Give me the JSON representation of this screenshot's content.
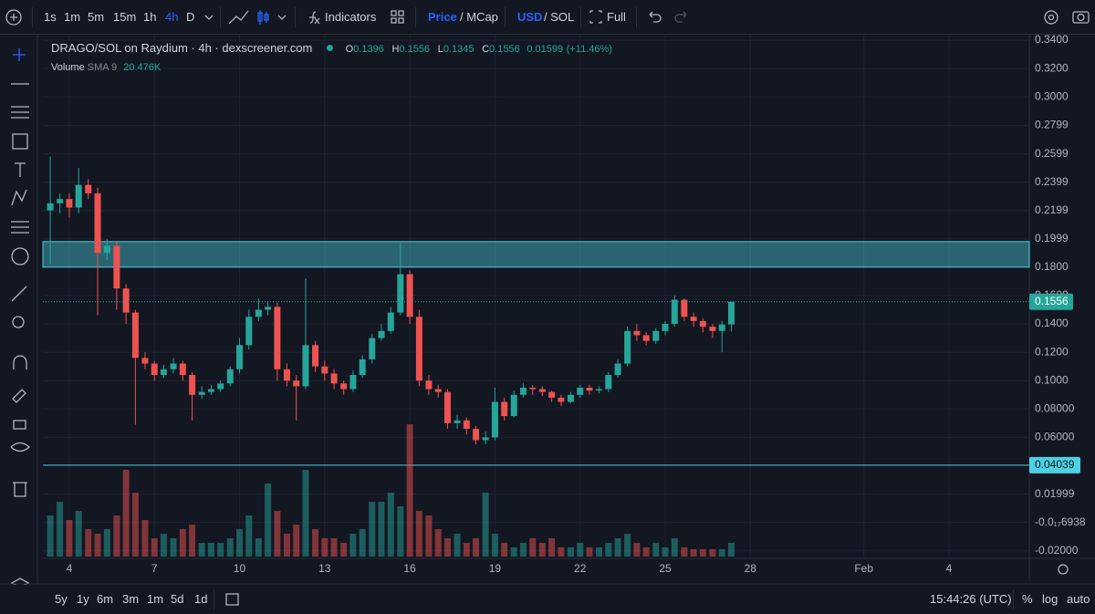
{
  "toolbar": {
    "intervals": [
      "1s",
      "1m",
      "5m",
      "15m",
      "1h",
      "4h",
      "D"
    ],
    "indicators": "Indicators",
    "price": "Price",
    "mcap": "/ MCap",
    "usd": "USD",
    "sol": "/ SOL",
    "full": "Full"
  },
  "legend": {
    "title": "DRAGO/SOL on Raydium · 4h · dexscreener.com",
    "o_label": "O",
    "o": 0.1396,
    "h_label": "H",
    "h": 0.1556,
    "l_label": "L",
    "l": 0.1345,
    "c_label": "C",
    "c": 0.1556,
    "change": 0.01599,
    "change_pct": "(+11.46%)",
    "volume": "Volume",
    "sma": "SMA 9",
    "sma_value": "20.476K"
  },
  "chart_data": {
    "type": "candlestick",
    "x": [
      3.33,
      3.67,
      4,
      4.33,
      4.67,
      5,
      5.33,
      5.67,
      6,
      6.33,
      6.67,
      7,
      7.33,
      7.67,
      8,
      8.33,
      8.67,
      9,
      9.33,
      9.67,
      10,
      10.33,
      10.67,
      11,
      11.33,
      11.67,
      12,
      12.33,
      12.67,
      13,
      13.33,
      13.67,
      14,
      14.33,
      14.67,
      15,
      15.33,
      15.67,
      16,
      16.33,
      16.67,
      17,
      17.33,
      17.67,
      18,
      18.33,
      18.67,
      19,
      19.33,
      19.67,
      20,
      20.33,
      20.67,
      21,
      21.33,
      21.67,
      22,
      22.33,
      22.67,
      23,
      23.33,
      23.67,
      24,
      24.33,
      24.67,
      25,
      25.33,
      25.67,
      26,
      26.33,
      26.67,
      27,
      27.33
    ],
    "open": [
      0.22,
      0.225,
      0.228,
      0.222,
      0.238,
      0.232,
      0.19,
      0.195,
      0.165,
      0.148,
      0.116,
      0.112,
      0.104,
      0.108,
      0.112,
      0.104,
      0.09,
      0.092,
      0.094,
      0.098,
      0.108,
      0.125,
      0.145,
      0.15,
      0.152,
      0.108,
      0.1,
      0.096,
      0.125,
      0.11,
      0.105,
      0.098,
      0.094,
      0.104,
      0.115,
      0.13,
      0.135,
      0.148,
      0.175,
      0.145,
      0.1,
      0.094,
      0.092,
      0.07,
      0.072,
      0.066,
      0.058,
      0.06,
      0.085,
      0.075,
      0.09,
      0.095,
      0.094,
      0.092,
      0.088,
      0.085,
      0.09,
      0.095,
      0.093,
      0.094,
      0.104,
      0.112,
      0.135,
      0.132,
      0.128,
      0.135,
      0.14,
      0.157,
      0.145,
      0.142,
      0.138,
      0.135,
      0.1396
    ],
    "high": [
      0.258,
      0.232,
      0.232,
      0.25,
      0.242,
      0.236,
      0.2,
      0.198,
      0.168,
      0.15,
      0.12,
      0.114,
      0.111,
      0.116,
      0.114,
      0.106,
      0.096,
      0.097,
      0.1,
      0.11,
      0.13,
      0.15,
      0.158,
      0.156,
      0.155,
      0.112,
      0.104,
      0.172,
      0.128,
      0.114,
      0.108,
      0.1,
      0.107,
      0.118,
      0.133,
      0.14,
      0.152,
      0.197,
      0.178,
      0.15,
      0.104,
      0.097,
      0.094,
      0.076,
      0.074,
      0.068,
      0.064,
      0.095,
      0.088,
      0.093,
      0.098,
      0.097,
      0.096,
      0.093,
      0.09,
      0.092,
      0.097,
      0.097,
      0.096,
      0.106,
      0.115,
      0.138,
      0.14,
      0.134,
      0.137,
      0.142,
      0.16,
      0.158,
      0.148,
      0.144,
      0.14,
      0.142,
      0.1556
    ],
    "low": [
      0.182,
      0.218,
      0.215,
      0.218,
      0.228,
      0.146,
      0.185,
      0.15,
      0.14,
      0.069,
      0.108,
      0.1,
      0.102,
      0.105,
      0.1,
      0.072,
      0.087,
      0.09,
      0.092,
      0.096,
      0.105,
      0.122,
      0.142,
      0.146,
      0.1,
      0.096,
      0.072,
      0.094,
      0.106,
      0.1,
      0.094,
      0.09,
      0.092,
      0.102,
      0.112,
      0.128,
      0.133,
      0.146,
      0.14,
      0.096,
      0.09,
      0.088,
      0.066,
      0.066,
      0.062,
      0.055,
      0.055,
      0.058,
      0.072,
      0.074,
      0.088,
      0.09,
      0.089,
      0.085,
      0.082,
      0.084,
      0.088,
      0.09,
      0.091,
      0.092,
      0.102,
      0.11,
      0.128,
      0.125,
      0.126,
      0.132,
      0.138,
      0.142,
      0.138,
      0.134,
      0.13,
      0.12,
      0.1345
    ],
    "close": [
      0.225,
      0.228,
      0.222,
      0.238,
      0.232,
      0.19,
      0.195,
      0.165,
      0.148,
      0.116,
      0.112,
      0.104,
      0.108,
      0.112,
      0.104,
      0.09,
      0.092,
      0.094,
      0.098,
      0.108,
      0.125,
      0.145,
      0.15,
      0.152,
      0.108,
      0.1,
      0.096,
      0.125,
      0.11,
      0.105,
      0.098,
      0.094,
      0.104,
      0.115,
      0.13,
      0.135,
      0.148,
      0.175,
      0.145,
      0.1,
      0.094,
      0.092,
      0.07,
      0.072,
      0.066,
      0.058,
      0.06,
      0.085,
      0.075,
      0.09,
      0.095,
      0.094,
      0.092,
      0.088,
      0.085,
      0.09,
      0.095,
      0.093,
      0.094,
      0.104,
      0.112,
      0.135,
      0.132,
      0.128,
      0.135,
      0.14,
      0.157,
      0.145,
      0.142,
      0.138,
      0.135,
      0.1396,
      0.1556
    ],
    "volume": [
      45000,
      60000,
      40000,
      50000,
      30000,
      25000,
      30000,
      45000,
      95000,
      70000,
      40000,
      20000,
      25000,
      20000,
      30000,
      35000,
      15000,
      15000,
      15000,
      20000,
      30000,
      45000,
      20000,
      80000,
      50000,
      25000,
      35000,
      95000,
      30000,
      20000,
      20000,
      15000,
      25000,
      30000,
      60000,
      60000,
      70000,
      55000,
      145000,
      50000,
      45000,
      30000,
      20000,
      25000,
      15000,
      20000,
      70000,
      25000,
      15000,
      10000,
      15000,
      20000,
      15000,
      20000,
      10000,
      10000,
      15000,
      10000,
      10000,
      15000,
      20000,
      25000,
      15000,
      10000,
      15000,
      10000,
      20000,
      10000,
      8000,
      8000,
      8000,
      8000,
      15000
    ],
    "up_color": "#26a69a",
    "down_color": "#ef5350",
    "xlim": [
      3.07,
      37.83
    ],
    "xticks": [
      4,
      7,
      10,
      13,
      16,
      19,
      22,
      25,
      28,
      {
        "value": 32,
        "label": "Feb"
      },
      {
        "value": 35,
        "label": "4"
      }
    ],
    "ylim": [
      -0.0253,
      0.3439
    ],
    "yticks": [
      {
        "value": 0.34,
        "label": "0.3400"
      },
      {
        "value": 0.32,
        "label": "0.3200"
      },
      {
        "value": 0.3,
        "label": "0.3000"
      },
      0.2799,
      0.2599,
      0.2399,
      0.2199,
      0.1999,
      {
        "value": 0.18,
        "label": "0.1800"
      },
      {
        "value": 0.16,
        "label": "0.1600"
      },
      {
        "value": 0.14,
        "label": "0.1400"
      },
      {
        "value": 0.12,
        "label": "0.1200"
      },
      {
        "value": 0.1,
        "label": "0.1000"
      },
      {
        "value": 0.08,
        "label": "0.08000"
      },
      {
        "value": 0.06,
        "label": "0.06000"
      },
      0.01999,
      {
        "value": -1.76938e-18,
        "label": "-0.0₁₇6938"
      },
      {
        "value": -0.02,
        "label": "-0.02000"
      }
    ],
    "volume_lim": [
      0,
      150000
    ],
    "zone": [
      0.18,
      0.198
    ],
    "hline": 0.04039,
    "grid": true
  },
  "bottom_bar": {
    "ranges": [
      "5y",
      "1y",
      "6m",
      "3m",
      "1m",
      "5d",
      "1d"
    ],
    "clock": "15:44:26 (UTC)",
    "percent": "%",
    "log": "log",
    "auto": "auto"
  }
}
